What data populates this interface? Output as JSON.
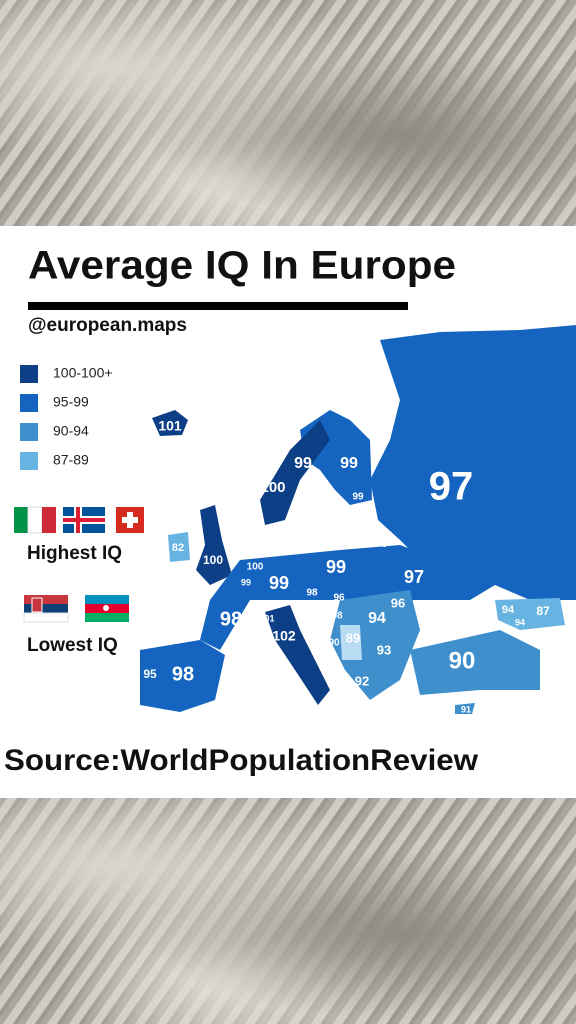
{
  "header": {
    "title": "Average IQ In Europe",
    "handle": "@european.maps"
  },
  "legend": [
    {
      "label": "100-100+",
      "color": "#0d3f86"
    },
    {
      "label": "95-99",
      "color": "#1565c0"
    },
    {
      "label": "90-94",
      "color": "#3e8fcc"
    },
    {
      "label": "87-89",
      "color": "#67b3e2"
    }
  ],
  "highlights": [
    {
      "label": "Highest IQ"
    },
    {
      "label": "Lowest IQ"
    }
  ],
  "map_labels": [
    101,
    99,
    99,
    100,
    97,
    82,
    100,
    99,
    98,
    91,
    97,
    100,
    99,
    99,
    99,
    97,
    98,
    100,
    98,
    96,
    96,
    94,
    101,
    102,
    98,
    89,
    90,
    93,
    92,
    90,
    95,
    98,
    94,
    87,
    94,
    91
  ],
  "source": "Source:WorldPopulationReview"
}
